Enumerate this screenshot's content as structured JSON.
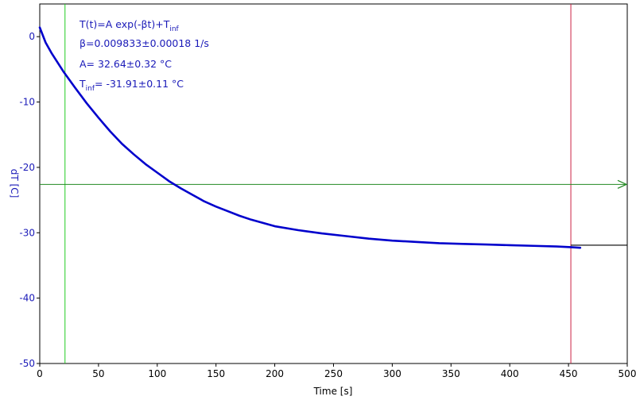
{
  "chart_data": {
    "type": "line",
    "xlabel": "Time [s]",
    "ylabel": "dT [C]",
    "xlim": [
      0,
      500
    ],
    "ylim": [
      -50,
      5
    ],
    "x_ticks": [
      0,
      50,
      100,
      150,
      200,
      250,
      300,
      350,
      400,
      450,
      500
    ],
    "y_ticks": [
      0,
      -10,
      -20,
      -30,
      -40,
      -50
    ],
    "grid": false,
    "series": [
      {
        "x": [
          0,
          5,
          10,
          20,
          30,
          40,
          50,
          60,
          70,
          80,
          90,
          100,
          110,
          120,
          130,
          140,
          150,
          160,
          170,
          180,
          190,
          200,
          220,
          240,
          260,
          280,
          300,
          320,
          340,
          360,
          380,
          400,
          420,
          440,
          452,
          460
        ],
        "y": [
          1.4,
          -0.9,
          -2.5,
          -5.3,
          -7.8,
          -10.2,
          -12.4,
          -14.5,
          -16.4,
          -18.0,
          -19.5,
          -20.8,
          -22.1,
          -23.2,
          -24.2,
          -25.2,
          -26.0,
          -26.7,
          -27.4,
          -28.0,
          -28.5,
          -29.0,
          -29.6,
          -30.1,
          -30.5,
          -30.9,
          -31.2,
          -31.4,
          -31.6,
          -31.7,
          -31.8,
          -31.9,
          -32.0,
          -32.1,
          -32.2,
          -32.3
        ],
        "color": "#0000cc"
      }
    ],
    "fit_tail": {
      "x": [
        452,
        500
      ],
      "y": [
        -31.9,
        -31.9
      ],
      "color": "#000000"
    },
    "cursor_left": {
      "x": 21.5,
      "color": "#22cc22"
    },
    "cursor_right": {
      "x": 452,
      "color": "#cc2244"
    },
    "horizontal_marker": {
      "y": -22.6,
      "color": "#228822"
    }
  },
  "annotations": {
    "color": "#1a1ab8",
    "formula_prefix": "T(t)=A exp(-βt)+T",
    "formula_sub": "inf",
    "beta": "β=0.009833±0.00018 1/s",
    "amplitude": "A= 32.64±0.32 °C",
    "tinf_prefix": "T",
    "tinf_sub": "inf",
    "tinf_value": "= -31.91±0.11 °C"
  }
}
